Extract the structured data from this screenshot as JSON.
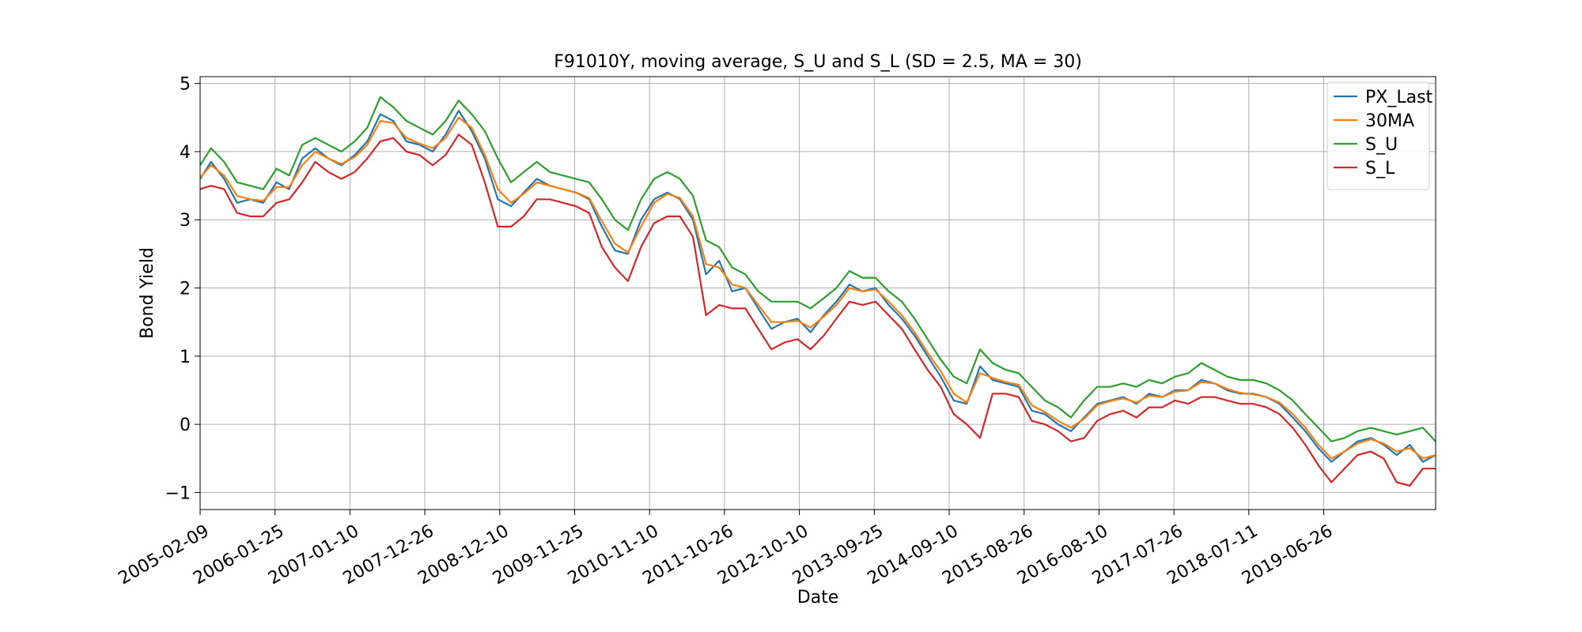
{
  "chart_data": {
    "type": "line",
    "title": "F91010Y, moving average, S_U and S_L (SD = 2.5, MA = 30)",
    "xlabel": "Date",
    "ylabel": "Bond Yield",
    "x_tick_labels": [
      "2005-02-09",
      "2006-01-25",
      "2007-01-10",
      "2007-12-26",
      "2008-12-10",
      "2009-11-25",
      "2010-11-10",
      "2011-10-26",
      "2012-10-10",
      "2013-09-25",
      "2014-09-10",
      "2015-08-26",
      "2016-08-10",
      "2017-07-26",
      "2018-07-11",
      "2019-06-26"
    ],
    "y_ticks": [
      -1,
      0,
      1,
      2,
      3,
      4,
      5
    ],
    "ylim": [
      -1.25,
      5.1
    ],
    "xlim": [
      "2005-02-09",
      "2020-11-30"
    ],
    "grid": true,
    "legend_position": "top-right",
    "x": [
      "2005-02-09",
      "2005-04-01",
      "2005-06-01",
      "2005-08-01",
      "2005-10-01",
      "2005-12-01",
      "2006-02-01",
      "2006-04-01",
      "2006-06-01",
      "2006-08-01",
      "2006-10-01",
      "2006-12-01",
      "2007-02-01",
      "2007-04-01",
      "2007-06-01",
      "2007-08-01",
      "2007-10-01",
      "2007-12-01",
      "2008-02-01",
      "2008-04-01",
      "2008-06-01",
      "2008-08-01",
      "2008-10-01",
      "2008-12-01",
      "2009-02-01",
      "2009-04-01",
      "2009-06-01",
      "2009-08-01",
      "2009-10-01",
      "2009-12-01",
      "2010-02-01",
      "2010-04-01",
      "2010-06-01",
      "2010-08-01",
      "2010-10-01",
      "2010-12-01",
      "2011-02-01",
      "2011-04-01",
      "2011-06-01",
      "2011-08-01",
      "2011-10-01",
      "2011-12-01",
      "2012-02-01",
      "2012-04-01",
      "2012-06-01",
      "2012-08-01",
      "2012-10-01",
      "2012-12-01",
      "2013-02-01",
      "2013-04-01",
      "2013-06-01",
      "2013-08-01",
      "2013-10-01",
      "2013-12-01",
      "2014-02-01",
      "2014-04-01",
      "2014-06-01",
      "2014-08-01",
      "2014-10-01",
      "2014-12-01",
      "2015-02-01",
      "2015-04-01",
      "2015-06-01",
      "2015-08-01",
      "2015-10-01",
      "2015-12-01",
      "2016-02-01",
      "2016-04-01",
      "2016-06-01",
      "2016-08-01",
      "2016-10-01",
      "2016-12-01",
      "2017-02-01",
      "2017-04-01",
      "2017-06-01",
      "2017-08-01",
      "2017-10-01",
      "2017-12-01",
      "2018-02-01",
      "2018-04-01",
      "2018-06-01",
      "2018-08-01",
      "2018-10-01",
      "2018-12-01",
      "2019-02-01",
      "2019-04-01",
      "2019-06-01",
      "2019-08-01",
      "2019-10-01",
      "2019-12-01",
      "2020-02-01",
      "2020-04-01",
      "2020-06-01",
      "2020-08-01",
      "2020-10-01",
      "2020-11-30"
    ],
    "series": [
      {
        "name": "PX_Last",
        "color": "#1f77b4",
        "values": [
          3.6,
          3.85,
          3.6,
          3.25,
          3.3,
          3.25,
          3.55,
          3.45,
          3.9,
          4.05,
          3.9,
          3.8,
          3.95,
          4.15,
          4.55,
          4.45,
          4.15,
          4.1,
          4.0,
          4.25,
          4.6,
          4.3,
          3.9,
          3.3,
          3.2,
          3.4,
          3.6,
          3.5,
          3.45,
          3.4,
          3.3,
          2.9,
          2.55,
          2.5,
          3.0,
          3.3,
          3.4,
          3.3,
          3.0,
          2.2,
          2.4,
          1.95,
          2.0,
          1.7,
          1.4,
          1.5,
          1.55,
          1.35,
          1.6,
          1.8,
          2.05,
          1.95,
          2.0,
          1.75,
          1.55,
          1.3,
          1.0,
          0.7,
          0.35,
          0.3,
          0.85,
          0.65,
          0.6,
          0.55,
          0.2,
          0.15,
          0.0,
          -0.1,
          0.1,
          0.3,
          0.35,
          0.4,
          0.3,
          0.45,
          0.4,
          0.5,
          0.5,
          0.65,
          0.6,
          0.5,
          0.45,
          0.45,
          0.4,
          0.3,
          0.1,
          -0.1,
          -0.35,
          -0.55,
          -0.4,
          -0.25,
          -0.2,
          -0.3,
          -0.45,
          -0.3,
          -0.55,
          -0.45
        ]
      },
      {
        "name": "30MA",
        "color": "#ff7f0e",
        "values": [
          3.62,
          3.8,
          3.65,
          3.35,
          3.3,
          3.28,
          3.48,
          3.48,
          3.8,
          4.0,
          3.9,
          3.82,
          3.92,
          4.1,
          4.45,
          4.42,
          4.2,
          4.12,
          4.05,
          4.2,
          4.5,
          4.35,
          3.95,
          3.45,
          3.25,
          3.38,
          3.55,
          3.5,
          3.45,
          3.4,
          3.32,
          2.98,
          2.65,
          2.52,
          2.9,
          3.25,
          3.38,
          3.32,
          3.05,
          2.35,
          2.3,
          2.05,
          2.0,
          1.75,
          1.5,
          1.5,
          1.52,
          1.42,
          1.58,
          1.75,
          2.0,
          1.95,
          1.98,
          1.8,
          1.6,
          1.35,
          1.05,
          0.78,
          0.45,
          0.32,
          0.75,
          0.68,
          0.62,
          0.58,
          0.28,
          0.18,
          0.05,
          -0.05,
          0.08,
          0.28,
          0.34,
          0.38,
          0.32,
          0.42,
          0.4,
          0.48,
          0.5,
          0.62,
          0.6,
          0.52,
          0.46,
          0.44,
          0.4,
          0.32,
          0.15,
          -0.05,
          -0.3,
          -0.5,
          -0.4,
          -0.28,
          -0.22,
          -0.28,
          -0.4,
          -0.35,
          -0.5,
          -0.45
        ]
      },
      {
        "name": "S_U",
        "color": "#2ca02c",
        "values": [
          3.8,
          4.05,
          3.85,
          3.55,
          3.5,
          3.45,
          3.75,
          3.65,
          4.1,
          4.2,
          4.1,
          4.0,
          4.15,
          4.35,
          4.8,
          4.65,
          4.45,
          4.35,
          4.25,
          4.45,
          4.75,
          4.55,
          4.3,
          3.9,
          3.55,
          3.7,
          3.85,
          3.7,
          3.65,
          3.6,
          3.55,
          3.3,
          3.0,
          2.85,
          3.3,
          3.6,
          3.7,
          3.6,
          3.35,
          2.7,
          2.6,
          2.3,
          2.2,
          1.95,
          1.8,
          1.8,
          1.8,
          1.7,
          1.85,
          2.0,
          2.25,
          2.15,
          2.15,
          1.95,
          1.8,
          1.55,
          1.25,
          0.95,
          0.7,
          0.6,
          1.1,
          0.9,
          0.8,
          0.75,
          0.55,
          0.35,
          0.25,
          0.1,
          0.35,
          0.55,
          0.55,
          0.6,
          0.55,
          0.65,
          0.6,
          0.7,
          0.75,
          0.9,
          0.8,
          0.7,
          0.65,
          0.65,
          0.6,
          0.5,
          0.35,
          0.15,
          -0.05,
          -0.25,
          -0.2,
          -0.1,
          -0.05,
          -0.1,
          -0.15,
          -0.1,
          -0.05,
          -0.25
        ]
      },
      {
        "name": "S_L",
        "color": "#d62728",
        "values": [
          3.45,
          3.5,
          3.45,
          3.1,
          3.05,
          3.05,
          3.25,
          3.3,
          3.55,
          3.85,
          3.7,
          3.6,
          3.7,
          3.9,
          4.15,
          4.2,
          4.0,
          3.95,
          3.8,
          3.95,
          4.25,
          4.1,
          3.55,
          2.9,
          2.9,
          3.05,
          3.3,
          3.3,
          3.25,
          3.2,
          3.1,
          2.6,
          2.3,
          2.1,
          2.6,
          2.95,
          3.05,
          3.05,
          2.75,
          1.6,
          1.75,
          1.7,
          1.7,
          1.4,
          1.1,
          1.2,
          1.25,
          1.1,
          1.3,
          1.55,
          1.8,
          1.75,
          1.8,
          1.6,
          1.4,
          1.1,
          0.8,
          0.55,
          0.15,
          0.0,
          -0.2,
          0.45,
          0.45,
          0.4,
          0.05,
          0.0,
          -0.1,
          -0.25,
          -0.2,
          0.05,
          0.15,
          0.2,
          0.1,
          0.25,
          0.25,
          0.35,
          0.3,
          0.4,
          0.4,
          0.35,
          0.3,
          0.3,
          0.25,
          0.15,
          -0.05,
          -0.3,
          -0.6,
          -0.85,
          -0.65,
          -0.45,
          -0.4,
          -0.5,
          -0.85,
          -0.9,
          -0.65,
          -0.65
        ]
      }
    ]
  }
}
